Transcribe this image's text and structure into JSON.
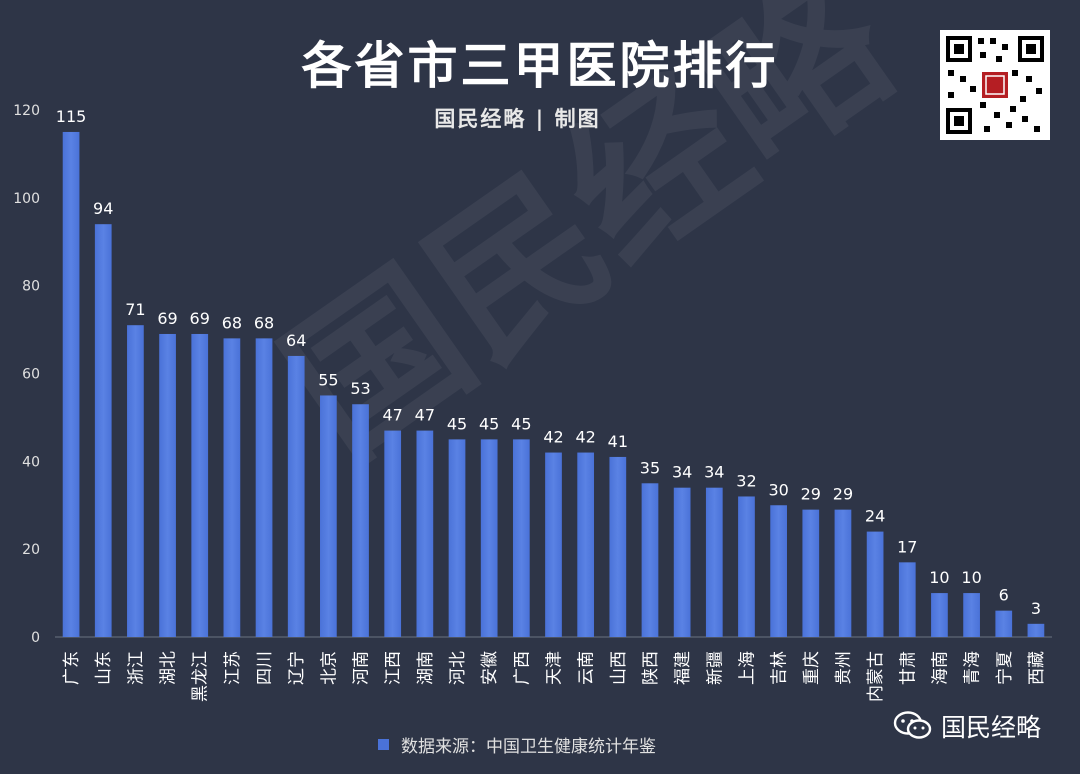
{
  "title": "各省市三甲医院排行",
  "subtitle": "国民经略 | 制图",
  "watermark": "国民经略",
  "legend": "数据来源：中国卫生健康统计年鉴",
  "brand": "国民经略",
  "colors": {
    "bar": "#4a72d8",
    "bar_light": "#5a82e4",
    "background": "#2e3547",
    "text": "#e0e0e0"
  },
  "chart_data": {
    "type": "bar",
    "categories": [
      "广东",
      "山东",
      "浙江",
      "湖北",
      "黑龙江",
      "江苏",
      "四川",
      "辽宁",
      "北京",
      "河南",
      "江西",
      "湖南",
      "河北",
      "安徽",
      "广西",
      "天津",
      "云南",
      "山西",
      "陕西",
      "福建",
      "新疆",
      "上海",
      "吉林",
      "重庆",
      "贵州",
      "内蒙古",
      "甘肃",
      "海南",
      "青海",
      "宁夏",
      "西藏"
    ],
    "values": [
      115,
      94,
      71,
      69,
      69,
      68,
      68,
      64,
      55,
      53,
      47,
      47,
      45,
      45,
      45,
      42,
      42,
      41,
      35,
      34,
      34,
      32,
      30,
      29,
      29,
      24,
      17,
      10,
      10,
      6,
      3
    ],
    "ylim": [
      0,
      120
    ],
    "yticks": [
      0,
      20,
      40,
      60,
      80,
      100,
      120
    ],
    "title": "各省市三甲医院排行",
    "xlabel": "",
    "ylabel": "",
    "legend": "数据来源：中国卫生健康统计年鉴",
    "grid": false
  }
}
